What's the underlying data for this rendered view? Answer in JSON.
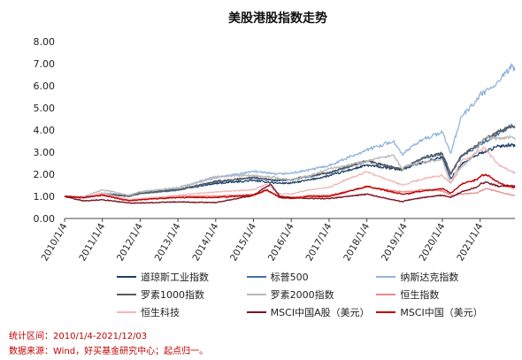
{
  "chart_data": {
    "type": "line",
    "title": "美股港股指数走势",
    "xlabel": "",
    "ylabel": "",
    "ylim": [
      0,
      8
    ],
    "y_ticks": [
      "0.00",
      "1.00",
      "2.00",
      "3.00",
      "4.00",
      "5.00",
      "6.00",
      "7.00",
      "8.00"
    ],
    "x_ticks": [
      "2010/1/4",
      "2011/1/4",
      "2012/1/4",
      "2013/1/4",
      "2014/1/4",
      "2015/1/4",
      "2016/1/4",
      "2017/1/4",
      "2018/1/4",
      "2019/1/4",
      "2020/1/4",
      "2021/1/4"
    ],
    "x_range": [
      2010.0,
      2021.92
    ],
    "grid": false,
    "legend_position": "bottom",
    "series": [
      {
        "name": "道琼斯工业指数",
        "color": "#1f3f66",
        "width": 1.3,
        "points": [
          [
            2010.0,
            1.0
          ],
          [
            2010.5,
            0.94
          ],
          [
            2011.0,
            1.1
          ],
          [
            2011.7,
            1.03
          ],
          [
            2012.0,
            1.18
          ],
          [
            2013.0,
            1.3
          ],
          [
            2014.0,
            1.58
          ],
          [
            2015.0,
            1.72
          ],
          [
            2015.6,
            1.6
          ],
          [
            2016.0,
            1.6
          ],
          [
            2016.5,
            1.75
          ],
          [
            2017.0,
            1.93
          ],
          [
            2018.0,
            2.41
          ],
          [
            2018.95,
            2.19
          ],
          [
            2019.0,
            2.26
          ],
          [
            2019.5,
            2.55
          ],
          [
            2020.0,
            2.78
          ],
          [
            2020.22,
            1.8
          ],
          [
            2020.5,
            2.45
          ],
          [
            2020.9,
            2.85
          ],
          [
            2021.0,
            2.95
          ],
          [
            2021.5,
            3.27
          ],
          [
            2021.85,
            3.35
          ],
          [
            2021.92,
            3.25
          ]
        ]
      },
      {
        "name": "标普500",
        "color": "#3f72a8",
        "width": 1.3,
        "points": [
          [
            2010.0,
            1.0
          ],
          [
            2010.5,
            0.92
          ],
          [
            2011.0,
            1.1
          ],
          [
            2011.7,
            1.0
          ],
          [
            2012.0,
            1.13
          ],
          [
            2013.0,
            1.28
          ],
          [
            2014.0,
            1.65
          ],
          [
            2015.0,
            1.84
          ],
          [
            2015.6,
            1.7
          ],
          [
            2016.0,
            1.75
          ],
          [
            2016.5,
            1.9
          ],
          [
            2017.0,
            2.05
          ],
          [
            2018.0,
            2.6
          ],
          [
            2018.95,
            2.2
          ],
          [
            2019.0,
            2.3
          ],
          [
            2019.5,
            2.75
          ],
          [
            2020.0,
            2.9
          ],
          [
            2020.22,
            2.0
          ],
          [
            2020.5,
            2.8
          ],
          [
            2020.9,
            3.25
          ],
          [
            2021.0,
            3.35
          ],
          [
            2021.5,
            3.85
          ],
          [
            2021.85,
            4.2
          ],
          [
            2021.92,
            4.1
          ]
        ]
      },
      {
        "name": "纳斯达克指数",
        "color": "#93b3dc",
        "width": 1.3,
        "points": [
          [
            2010.0,
            1.0
          ],
          [
            2010.5,
            0.92
          ],
          [
            2011.0,
            1.15
          ],
          [
            2011.7,
            1.05
          ],
          [
            2012.0,
            1.2
          ],
          [
            2013.0,
            1.38
          ],
          [
            2014.0,
            1.84
          ],
          [
            2015.0,
            2.13
          ],
          [
            2015.6,
            2.0
          ],
          [
            2016.0,
            2.05
          ],
          [
            2016.5,
            2.2
          ],
          [
            2017.0,
            2.4
          ],
          [
            2018.0,
            3.1
          ],
          [
            2018.7,
            3.5
          ],
          [
            2018.95,
            2.85
          ],
          [
            2019.0,
            3.0
          ],
          [
            2019.5,
            3.6
          ],
          [
            2020.0,
            3.9
          ],
          [
            2020.22,
            2.95
          ],
          [
            2020.5,
            4.6
          ],
          [
            2020.9,
            5.3
          ],
          [
            2021.0,
            5.6
          ],
          [
            2021.3,
            5.9
          ],
          [
            2021.5,
            6.2
          ],
          [
            2021.85,
            6.9
          ],
          [
            2021.92,
            6.7
          ]
        ]
      },
      {
        "name": "罗素1000指数",
        "color": "#5a5a5a",
        "width": 1.3,
        "points": [
          [
            2010.0,
            1.0
          ],
          [
            2010.5,
            0.93
          ],
          [
            2011.0,
            1.13
          ],
          [
            2011.7,
            1.0
          ],
          [
            2012.0,
            1.13
          ],
          [
            2013.0,
            1.3
          ],
          [
            2014.0,
            1.68
          ],
          [
            2015.0,
            1.86
          ],
          [
            2015.6,
            1.74
          ],
          [
            2016.0,
            1.76
          ],
          [
            2016.5,
            1.92
          ],
          [
            2017.0,
            2.08
          ],
          [
            2018.0,
            2.6
          ],
          [
            2018.95,
            2.2
          ],
          [
            2019.0,
            2.3
          ],
          [
            2019.5,
            2.75
          ],
          [
            2020.0,
            2.95
          ],
          [
            2020.22,
            2.0
          ],
          [
            2020.5,
            2.85
          ],
          [
            2020.9,
            3.3
          ],
          [
            2021.0,
            3.45
          ],
          [
            2021.5,
            3.95
          ],
          [
            2021.85,
            4.2
          ],
          [
            2021.92,
            4.15
          ]
        ]
      },
      {
        "name": "罗素2000指数",
        "color": "#b9b9b9",
        "width": 1.3,
        "points": [
          [
            2010.0,
            1.0
          ],
          [
            2010.5,
            0.97
          ],
          [
            2011.0,
            1.3
          ],
          [
            2011.7,
            1.05
          ],
          [
            2012.0,
            1.2
          ],
          [
            2013.0,
            1.4
          ],
          [
            2014.0,
            1.9
          ],
          [
            2015.0,
            1.95
          ],
          [
            2015.6,
            1.85
          ],
          [
            2016.0,
            1.75
          ],
          [
            2016.5,
            1.95
          ],
          [
            2017.0,
            2.25
          ],
          [
            2018.0,
            2.6
          ],
          [
            2018.7,
            2.85
          ],
          [
            2018.95,
            2.2
          ],
          [
            2019.0,
            2.35
          ],
          [
            2019.5,
            2.55
          ],
          [
            2020.0,
            2.65
          ],
          [
            2020.22,
            1.6
          ],
          [
            2020.5,
            2.3
          ],
          [
            2020.9,
            3.0
          ],
          [
            2021.0,
            3.4
          ],
          [
            2021.2,
            3.7
          ],
          [
            2021.5,
            3.6
          ],
          [
            2021.85,
            3.7
          ],
          [
            2021.92,
            3.55
          ]
        ]
      },
      {
        "name": "恒生指数",
        "color": "#e48c8c",
        "width": 1.3,
        "points": [
          [
            2010.0,
            1.0
          ],
          [
            2010.5,
            0.95
          ],
          [
            2011.0,
            1.1
          ],
          [
            2011.7,
            0.8
          ],
          [
            2012.0,
            0.88
          ],
          [
            2013.0,
            1.0
          ],
          [
            2014.0,
            1.02
          ],
          [
            2015.0,
            1.08
          ],
          [
            2015.35,
            1.26
          ],
          [
            2015.7,
            1.0
          ],
          [
            2016.0,
            0.95
          ],
          [
            2016.5,
            1.05
          ],
          [
            2017.0,
            1.05
          ],
          [
            2018.0,
            1.42
          ],
          [
            2018.95,
            1.2
          ],
          [
            2019.0,
            1.2
          ],
          [
            2019.5,
            1.3
          ],
          [
            2020.0,
            1.25
          ],
          [
            2020.22,
            1.05
          ],
          [
            2020.5,
            1.1
          ],
          [
            2020.9,
            1.15
          ],
          [
            2021.0,
            1.25
          ],
          [
            2021.2,
            1.35
          ],
          [
            2021.5,
            1.2
          ],
          [
            2021.85,
            1.05
          ],
          [
            2021.92,
            1.05
          ]
        ]
      },
      {
        "name": "恒生科技",
        "color": "#f1b6b6",
        "width": 1.3,
        "points": [
          [
            2010.0,
            1.0
          ],
          [
            2010.5,
            0.93
          ],
          [
            2011.0,
            1.15
          ],
          [
            2011.7,
            0.85
          ],
          [
            2012.0,
            0.9
          ],
          [
            2013.0,
            1.05
          ],
          [
            2014.0,
            1.2
          ],
          [
            2015.0,
            1.3
          ],
          [
            2015.35,
            1.55
          ],
          [
            2015.7,
            1.1
          ],
          [
            2016.0,
            1.1
          ],
          [
            2016.5,
            1.3
          ],
          [
            2017.0,
            1.4
          ],
          [
            2017.5,
            1.8
          ],
          [
            2018.0,
            2.1
          ],
          [
            2018.95,
            1.5
          ],
          [
            2019.0,
            1.55
          ],
          [
            2019.5,
            1.8
          ],
          [
            2020.0,
            1.95
          ],
          [
            2020.22,
            1.6
          ],
          [
            2020.5,
            2.6
          ],
          [
            2020.9,
            2.95
          ],
          [
            2021.0,
            3.1
          ],
          [
            2021.1,
            3.2
          ],
          [
            2021.5,
            2.4
          ],
          [
            2021.85,
            2.1
          ],
          [
            2021.92,
            2.05
          ]
        ]
      },
      {
        "name": "MSCI中国A股（美元）",
        "color": "#7a1420",
        "width": 1.4,
        "points": [
          [
            2010.0,
            1.0
          ],
          [
            2010.5,
            0.8
          ],
          [
            2011.0,
            0.85
          ],
          [
            2011.7,
            0.7
          ],
          [
            2012.0,
            0.7
          ],
          [
            2013.0,
            0.75
          ],
          [
            2014.0,
            0.72
          ],
          [
            2015.0,
            1.05
          ],
          [
            2015.45,
            1.55
          ],
          [
            2015.7,
            1.0
          ],
          [
            2016.0,
            0.95
          ],
          [
            2016.5,
            0.9
          ],
          [
            2017.0,
            0.9
          ],
          [
            2018.0,
            1.1
          ],
          [
            2018.95,
            0.75
          ],
          [
            2019.0,
            0.8
          ],
          [
            2019.5,
            0.95
          ],
          [
            2020.0,
            1.05
          ],
          [
            2020.22,
            0.95
          ],
          [
            2020.5,
            1.2
          ],
          [
            2020.9,
            1.4
          ],
          [
            2021.0,
            1.55
          ],
          [
            2021.15,
            1.65
          ],
          [
            2021.5,
            1.45
          ],
          [
            2021.85,
            1.5
          ],
          [
            2021.92,
            1.45
          ]
        ]
      },
      {
        "name": "MSCI中国（美元）",
        "color": "#c00000",
        "width": 1.4,
        "points": [
          [
            2010.0,
            1.0
          ],
          [
            2010.5,
            0.95
          ],
          [
            2011.0,
            1.05
          ],
          [
            2011.7,
            0.8
          ],
          [
            2012.0,
            0.85
          ],
          [
            2013.0,
            0.95
          ],
          [
            2014.0,
            0.95
          ],
          [
            2015.0,
            1.05
          ],
          [
            2015.35,
            1.3
          ],
          [
            2015.7,
            0.95
          ],
          [
            2016.0,
            0.9
          ],
          [
            2016.5,
            1.0
          ],
          [
            2017.0,
            1.0
          ],
          [
            2018.0,
            1.45
          ],
          [
            2018.95,
            1.1
          ],
          [
            2019.0,
            1.1
          ],
          [
            2019.5,
            1.25
          ],
          [
            2020.0,
            1.35
          ],
          [
            2020.22,
            1.15
          ],
          [
            2020.5,
            1.55
          ],
          [
            2020.9,
            1.75
          ],
          [
            2021.0,
            1.9
          ],
          [
            2021.15,
            2.0
          ],
          [
            2021.5,
            1.6
          ],
          [
            2021.85,
            1.4
          ],
          [
            2021.92,
            1.4
          ]
        ]
      }
    ]
  },
  "legend": {
    "rows": [
      [
        {
          "label": "道琼斯工业指数",
          "color": "#1f3f66"
        },
        {
          "label": "标普500",
          "color": "#3f72a8"
        },
        {
          "label": "纳斯达克指数",
          "color": "#93b3dc"
        }
      ],
      [
        {
          "label": "罗素1000指数",
          "color": "#5a5a5a"
        },
        {
          "label": "罗素2000指数",
          "color": "#b9b9b9"
        },
        {
          "label": "恒生指数",
          "color": "#e48c8c"
        }
      ],
      [
        {
          "label": "恒生科技",
          "color": "#f1b6b6"
        },
        {
          "label": "MSCI中国A股（美元）",
          "color": "#7a1420"
        },
        {
          "label": "MSCI中国（美元）",
          "color": "#c00000"
        }
      ]
    ]
  },
  "footnotes": {
    "period": "统计区间：2010/1/4-2021/12/03",
    "source": "数据来源：Wind，好买基金研究中心；起点归一。"
  }
}
